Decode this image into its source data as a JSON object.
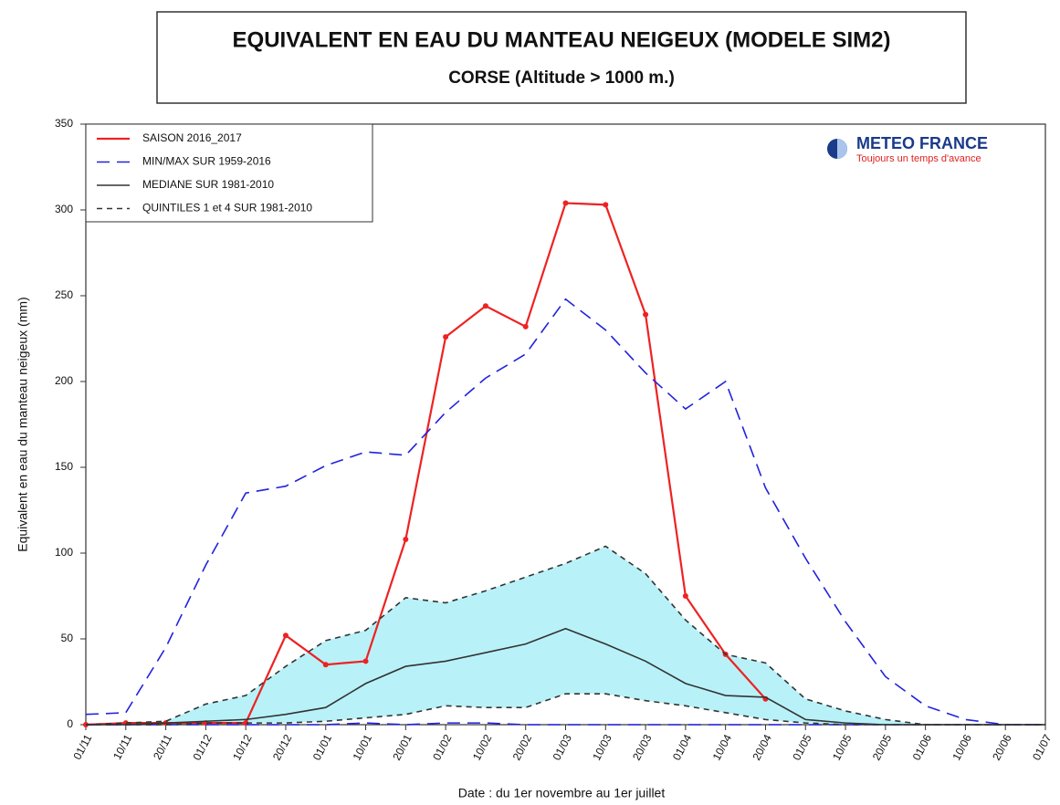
{
  "chart_data": {
    "type": "line",
    "title": "EQUIVALENT EN EAU DU MANTEAU NEIGEUX (MODELE SIM2)",
    "subtitle": "CORSE  (Altitude > 1000 m.)",
    "logo": {
      "name": "METEO FRANCE",
      "tagline": "Toujours un temps d'avance"
    },
    "y_label": "Equivalent en eau du manteau neigeux (mm)",
    "x_label": "Date : du 1er novembre au 1er juillet",
    "categories": [
      "01/11",
      "10/11",
      "20/11",
      "01/12",
      "10/12",
      "20/12",
      "01/01",
      "10/01",
      "20/01",
      "01/02",
      "10/02",
      "20/02",
      "01/03",
      "10/03",
      "20/03",
      "01/04",
      "10/04",
      "20/04",
      "01/05",
      "10/05",
      "20/05",
      "01/06",
      "10/06",
      "20/06",
      "01/07"
    ],
    "ylim": [
      0,
      350
    ],
    "yticks": [
      0,
      50,
      100,
      150,
      200,
      250,
      300,
      350
    ],
    "legend": "top-left",
    "series": [
      {
        "name": "SAISON 2016_2017",
        "color": "#ee2222",
        "dash": "solid",
        "markers": true,
        "values": [
          0,
          1,
          1,
          1,
          1,
          52,
          35,
          37,
          108,
          226,
          244,
          232,
          304,
          303,
          239,
          75,
          41,
          15,
          null,
          null,
          null,
          null,
          null,
          null,
          null
        ]
      },
      {
        "name": "MIN/MAX SUR 1959-2016",
        "color": "#2222dd",
        "dash": "long",
        "values": [
          6,
          7,
          45,
          93,
          135,
          139,
          151,
          159,
          157,
          182,
          202,
          216,
          248,
          230,
          205,
          184,
          200,
          138,
          97,
          60,
          28,
          11,
          3,
          0,
          0
        ],
        "values_low": [
          0,
          0,
          0,
          0,
          0,
          0,
          0,
          1,
          0,
          1,
          1,
          0,
          0,
          0,
          0,
          0,
          0,
          0,
          0,
          0,
          0,
          0,
          0,
          0,
          0
        ]
      },
      {
        "name": "MEDIANE SUR 1981-2010",
        "color": "#333333",
        "dash": "solid",
        "values": [
          0,
          0,
          1,
          2,
          3,
          6,
          10,
          24,
          34,
          37,
          42,
          47,
          56,
          47,
          37,
          24,
          17,
          16,
          3,
          1,
          0,
          0,
          0,
          0,
          0
        ]
      },
      {
        "name": "QUINTILES 1 et 4 SUR 1981-2010",
        "color": "#333333",
        "dash": "short",
        "fill": "#b8f2f8",
        "values": [
          0,
          1,
          2,
          12,
          17,
          34,
          49,
          55,
          74,
          71,
          78,
          86,
          94,
          104,
          88,
          61,
          41,
          36,
          15,
          8,
          3,
          0,
          0,
          0,
          0
        ],
        "values_low": [
          0,
          0,
          0,
          1,
          1,
          1,
          2,
          4,
          6,
          11,
          10,
          10,
          18,
          18,
          14,
          11,
          7,
          3,
          1,
          0,
          0,
          0,
          0,
          0,
          0
        ]
      }
    ]
  }
}
